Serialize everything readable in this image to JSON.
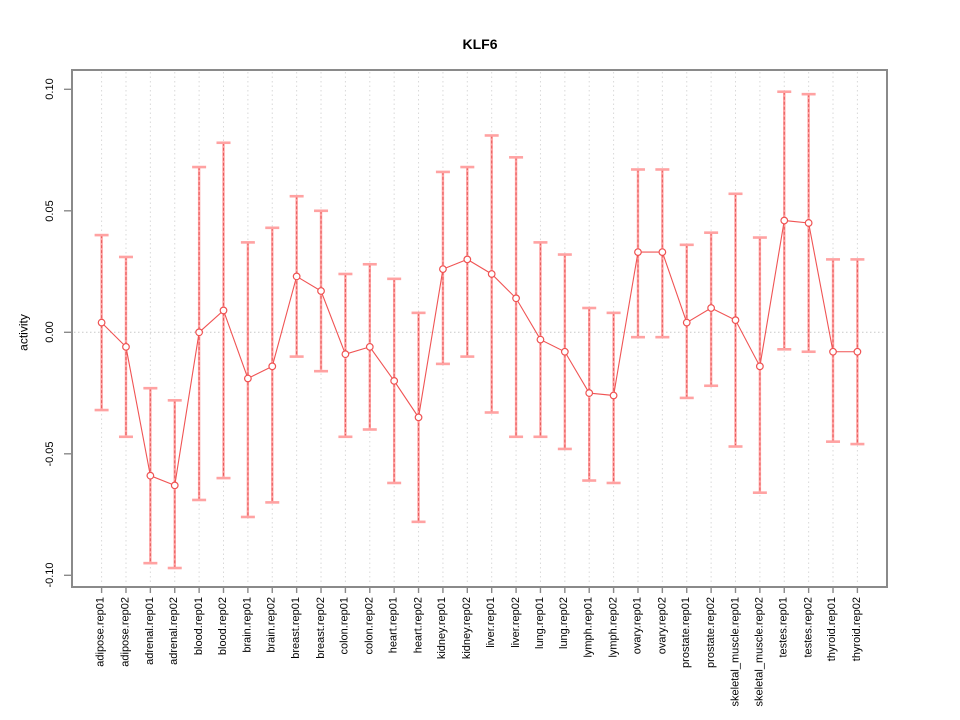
{
  "chart_data": {
    "type": "line",
    "title": "KLF6",
    "xlabel": "",
    "ylabel": "activity",
    "legend": "none",
    "ylim": [
      -0.1,
      0.1
    ],
    "yticks": {
      "values": [
        0.1,
        0.05,
        0.0,
        -0.05,
        -0.1
      ],
      "labels": [
        "0.10",
        "0.05",
        "0.00",
        "-0.05",
        "-0.10"
      ]
    },
    "grid": {
      "vertical_dotted_per_category": true,
      "horizontal_dotted_at_zero": true
    },
    "categories": [
      "adipose.rep01",
      "adipose.rep02",
      "adrenal.rep01",
      "adrenal.rep02",
      "blood.rep01",
      "blood.rep02",
      "brain.rep01",
      "brain.rep02",
      "breast.rep01",
      "breast.rep02",
      "colon.rep01",
      "colon.rep02",
      "heart.rep01",
      "heart.rep02",
      "kidney.rep01",
      "kidney.rep02",
      "liver.rep01",
      "liver.rep02",
      "lung.rep01",
      "lung.rep02",
      "lymph.rep01",
      "lymph.rep02",
      "ovary.rep01",
      "ovary.rep02",
      "prostate.rep01",
      "prostate.rep02",
      "skeletal_muscle.rep01",
      "skeletal_muscle.rep02",
      "testes.rep01",
      "testes.rep02",
      "thyroid.rep01",
      "thyroid.rep02"
    ],
    "series": [
      {
        "name": "activity",
        "values": [
          0.004,
          -0.006,
          -0.059,
          -0.063,
          0.0,
          0.009,
          -0.019,
          -0.014,
          0.023,
          0.017,
          -0.009,
          -0.006,
          -0.02,
          -0.035,
          0.026,
          0.03,
          0.024,
          0.014,
          -0.003,
          -0.008,
          -0.025,
          -0.026,
          0.033,
          0.033,
          0.004,
          0.01,
          0.005,
          -0.014,
          0.046,
          0.045,
          -0.008,
          -0.008
        ],
        "ci_high": [
          0.04,
          0.031,
          -0.023,
          -0.028,
          0.068,
          0.078,
          0.037,
          0.043,
          0.056,
          0.05,
          0.024,
          0.028,
          0.022,
          0.008,
          0.066,
          0.068,
          0.081,
          0.072,
          0.037,
          0.032,
          0.01,
          0.008,
          0.067,
          0.067,
          0.036,
          0.041,
          0.057,
          0.039,
          0.099,
          0.098,
          0.03,
          0.03
        ],
        "ci_low": [
          -0.032,
          -0.043,
          -0.095,
          -0.097,
          -0.069,
          -0.06,
          -0.076,
          -0.07,
          -0.01,
          -0.016,
          -0.043,
          -0.04,
          -0.062,
          -0.078,
          -0.013,
          -0.01,
          -0.033,
          -0.043,
          -0.043,
          -0.048,
          -0.061,
          -0.062,
          -0.002,
          -0.002,
          -0.027,
          -0.022,
          -0.047,
          -0.066,
          -0.007,
          -0.008,
          -0.045,
          -0.046
        ]
      }
    ],
    "colors": {
      "line": "#f05454",
      "point_stroke": "#ef5252",
      "point_fill": "#ffffff",
      "bar_solid": "#ffa2a2",
      "bar_dash": "#e65a5a",
      "cap": "#ffa2a2",
      "grid": "#d9d9d9",
      "zero_line": "#c9c9c9",
      "frame": "#8a8a8a",
      "tick": "#8a8a8a",
      "text": "#000000"
    }
  }
}
